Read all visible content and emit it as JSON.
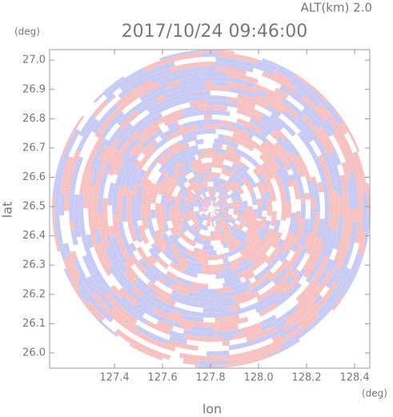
{
  "chart_data": {
    "type": "radar-ppi",
    "title": "2017/10/24 09:46:00",
    "subtitle": "ALT(km) 2.0",
    "x_label": "lon",
    "y_label": "lat",
    "x_unit": "(deg)",
    "y_unit": "(deg)",
    "xlim": [
      127.13,
      128.463
    ],
    "ylim": [
      25.948,
      27.036
    ],
    "xticks": [
      127.4,
      127.6,
      127.8,
      {
        "value": 128,
        "label": "128.0"
      },
      128.2,
      128.4
    ],
    "yticks": [
      {
        "value": 26,
        "label": "26.0"
      },
      26.1,
      26.2,
      26.3,
      26.4,
      26.5,
      26.6,
      26.7,
      26.8,
      26.9,
      {
        "value": 27,
        "label": "27.0"
      }
    ]
  }
}
